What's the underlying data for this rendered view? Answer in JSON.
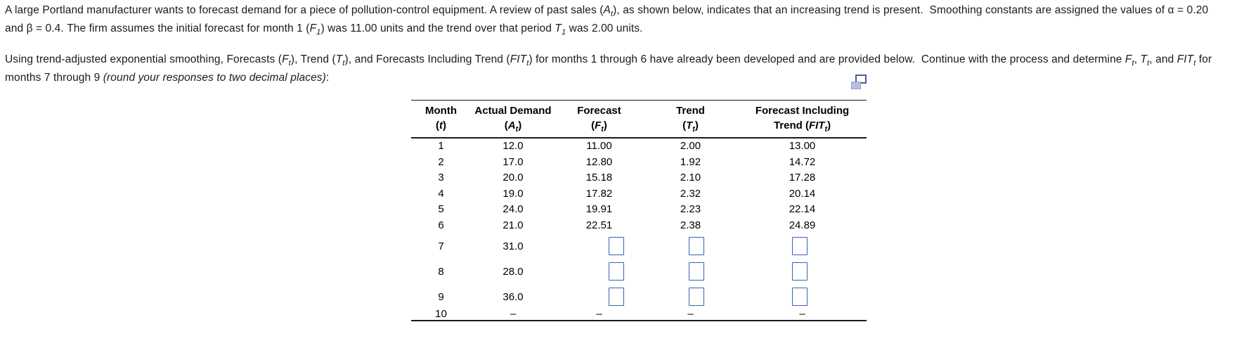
{
  "colors": {
    "background": "#ffffff",
    "text": "#1a1a1a",
    "table_rule": "#1a1a1a",
    "input_border": "#3563b8",
    "icon_front_border": "#4a5c9e",
    "icon_back_fill": "#b8bedd"
  },
  "icons": {
    "table_popout": "popout-copy-icon"
  },
  "intro": {
    "p1l1": [
      "A large Portland manufacturer wants to forecast demand for a piece of pollution-control equipment. A review of past sales (",
      {
        "v": "A",
        "s": "t"
      },
      "), as shown below, indicates that an increasing trend is present.  Smoothing constants are assigned the values of α = 0.20"
    ],
    "p1l2": [
      "and β = 0.4. The firm assumes the initial forecast for month 1 (",
      {
        "v": "F",
        "s": "1"
      },
      ") was 11.00 units and the trend over that period ",
      {
        "v": "T",
        "s": "1"
      },
      " was 2.00 units."
    ],
    "p2l1": [
      "Using trend-adjusted exponential smoothing, Forecasts (",
      {
        "v": "F",
        "s": "t"
      },
      "), Trend (",
      {
        "v": "T",
        "s": "t"
      },
      "), and Forecasts Including Trend (",
      {
        "v": "FIT",
        "s": "t"
      },
      ") for months 1 through 6 have already been developed and are provided below.  Continue with the process and determine ",
      {
        "v": "F",
        "s": "t"
      },
      ", ",
      {
        "v": "T",
        "s": "t"
      },
      ", and ",
      {
        "v": "FIT",
        "s": "t"
      },
      " for"
    ],
    "p2l2": [
      "months 7 through 9 ",
      {
        "i": "(round your responses to two decimal places)"
      },
      ":"
    ]
  },
  "table": {
    "headers": {
      "month": {
        "l1": "Month",
        "l2": [
          "(",
          {
            "v": "t"
          },
          ")"
        ]
      },
      "actual": {
        "l1": "Actual Demand",
        "l2": [
          "(",
          {
            "v": "A",
            "s": "t"
          },
          ")"
        ]
      },
      "forecast": {
        "l1": "Forecast",
        "l2": [
          "(",
          {
            "v": "F",
            "s": "t"
          },
          ")"
        ]
      },
      "trend": {
        "l1": "Trend",
        "l2": [
          "(",
          {
            "v": "T",
            "s": "t"
          },
          ")"
        ]
      },
      "fit": {
        "l1": "Forecast Including",
        "l2": [
          "Trend (",
          {
            "v": "FIT",
            "s": "t"
          },
          ")"
        ]
      }
    },
    "rows": [
      {
        "month": "1",
        "actual": "12.0",
        "forecast": "11.00",
        "trend": "2.00",
        "fit": "13.00"
      },
      {
        "month": "2",
        "actual": "17.0",
        "forecast": "12.80",
        "trend": "1.92",
        "fit": "14.72"
      },
      {
        "month": "3",
        "actual": "20.0",
        "forecast": "15.18",
        "trend": "2.10",
        "fit": "17.28"
      },
      {
        "month": "4",
        "actual": "19.0",
        "forecast": "17.82",
        "trend": "2.32",
        "fit": "20.14"
      },
      {
        "month": "5",
        "actual": "24.0",
        "forecast": "19.91",
        "trend": "2.23",
        "fit": "22.14"
      },
      {
        "month": "6",
        "actual": "21.0",
        "forecast": "22.51",
        "trend": "2.38",
        "fit": "24.89"
      },
      {
        "month": "7",
        "actual": "31.0"
      },
      {
        "month": "8",
        "actual": "28.0"
      },
      {
        "month": "9",
        "actual": "36.0"
      },
      {
        "month": "10",
        "actual": "–",
        "forecast": "–",
        "trend": "–",
        "fit": "–"
      }
    ]
  }
}
